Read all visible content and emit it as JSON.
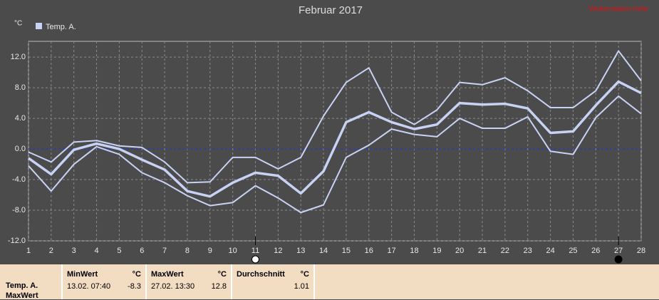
{
  "chart_data": {
    "type": "line",
    "title": "Februar 2017",
    "station": "Wetterstation Hefe",
    "y_unit": "°C",
    "x": [
      1,
      2,
      3,
      4,
      5,
      6,
      7,
      8,
      9,
      10,
      11,
      12,
      13,
      14,
      15,
      16,
      17,
      18,
      19,
      20,
      21,
      22,
      23,
      24,
      25,
      26,
      27,
      28
    ],
    "xlim": [
      1,
      28
    ],
    "xticks": [
      1,
      2,
      3,
      4,
      5,
      6,
      7,
      8,
      9,
      10,
      11,
      12,
      13,
      14,
      15,
      16,
      17,
      18,
      19,
      20,
      21,
      22,
      23,
      24,
      25,
      26,
      27,
      28
    ],
    "ylim": [
      -12,
      13.5
    ],
    "yticks": [
      {
        "value": -12,
        "label": "-12.0"
      },
      {
        "value": -8,
        "label": "-8.0"
      },
      {
        "value": -4,
        "label": "-4.0"
      },
      {
        "value": 0,
        "label": "0.0"
      },
      {
        "value": 4,
        "label": "4.0"
      },
      {
        "value": 8,
        "label": "8.0"
      },
      {
        "value": 12,
        "label": "12.0"
      }
    ],
    "grid": true,
    "zero_line_color": "#2233dd",
    "markers_x": [
      11,
      27
    ],
    "series": [
      {
        "name": "Temp. A.",
        "color": "#c8d2f4",
        "values": [
          -1.2,
          -3.3,
          -0.1,
          0.7,
          0.0,
          -1.4,
          -2.7,
          -5.5,
          -6.2,
          -4.4,
          -3.1,
          -3.5,
          -5.8,
          -2.9,
          3.5,
          4.8,
          3.5,
          2.6,
          3.2,
          6.0,
          5.8,
          5.9,
          5.3,
          2.1,
          2.3,
          5.7,
          8.8,
          7.3
        ],
        "max_values": [
          -0.4,
          -1.7,
          0.9,
          1.1,
          0.4,
          0.2,
          -1.7,
          -4.4,
          -4.3,
          -1.1,
          -1.1,
          -2.6,
          -1.1,
          4.3,
          8.7,
          10.6,
          4.8,
          3.2,
          5.1,
          8.7,
          8.4,
          9.3,
          7.6,
          5.4,
          5.4,
          7.6,
          12.8,
          8.9
        ],
        "min_values": [
          -2.2,
          -5.5,
          -2.0,
          0.3,
          -0.7,
          -3.1,
          -4.4,
          -6.1,
          -7.4,
          -7.0,
          -4.8,
          -6.4,
          -8.3,
          -7.3,
          -1.1,
          0.5,
          2.6,
          1.9,
          1.6,
          4.0,
          2.7,
          2.7,
          4.2,
          -0.3,
          -0.7,
          4.1,
          6.9,
          4.6
        ]
      }
    ]
  },
  "stats": {
    "row_labels": [
      "Temp. A.",
      "MaxWert"
    ],
    "unit": "°C",
    "columns": [
      {
        "header": "MinWert",
        "time": "13.02.  07:40",
        "value": "-8.3"
      },
      {
        "header": "MaxWert",
        "time": "27.02.  13:30",
        "value": "12.8"
      },
      {
        "header": "Durchschnitt",
        "time": "",
        "value": "1.01"
      }
    ]
  }
}
